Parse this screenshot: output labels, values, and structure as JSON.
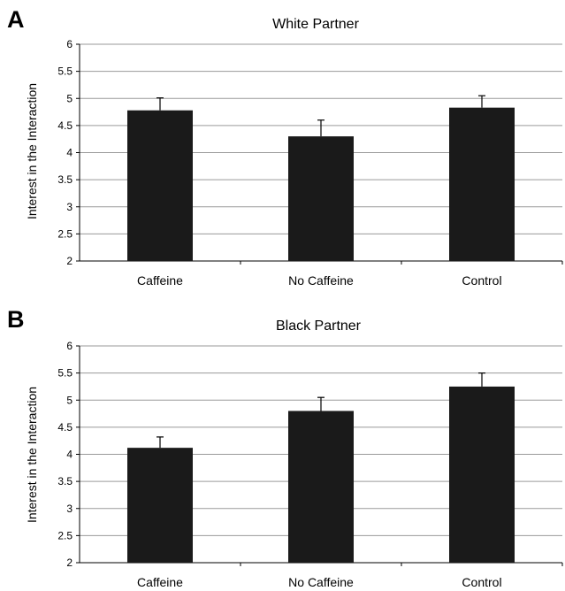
{
  "panels": [
    {
      "letter": "A"
    },
    {
      "letter": "B"
    }
  ],
  "chart_data": [
    {
      "type": "bar",
      "title": "White Partner",
      "xlabel": "",
      "ylabel": "Interest in the Interaction",
      "ylim": [
        2,
        6
      ],
      "yticks": [
        "2",
        "2.5",
        "3",
        "3.5",
        "4",
        "4.5",
        "5",
        "5.5",
        "6"
      ],
      "grid": true,
      "categories": [
        "Caffeine",
        "No Caffeine",
        "Control"
      ],
      "values": [
        4.78,
        4.3,
        4.83
      ],
      "error_upper": [
        0.23,
        0.3,
        0.22
      ],
      "bar_color": "#1a1a1a"
    },
    {
      "type": "bar",
      "title": "Black Partner",
      "xlabel": "",
      "ylabel": "Interest in the Interaction",
      "ylim": [
        2,
        6
      ],
      "yticks": [
        "2",
        "2.5",
        "3",
        "3.5",
        "4",
        "4.5",
        "5",
        "5.5",
        "6"
      ],
      "grid": true,
      "categories": [
        "Caffeine",
        "No Caffeine",
        "Control"
      ],
      "values": [
        4.12,
        4.8,
        5.25
      ],
      "error_upper": [
        0.2,
        0.25,
        0.25
      ],
      "bar_color": "#1a1a1a"
    }
  ]
}
